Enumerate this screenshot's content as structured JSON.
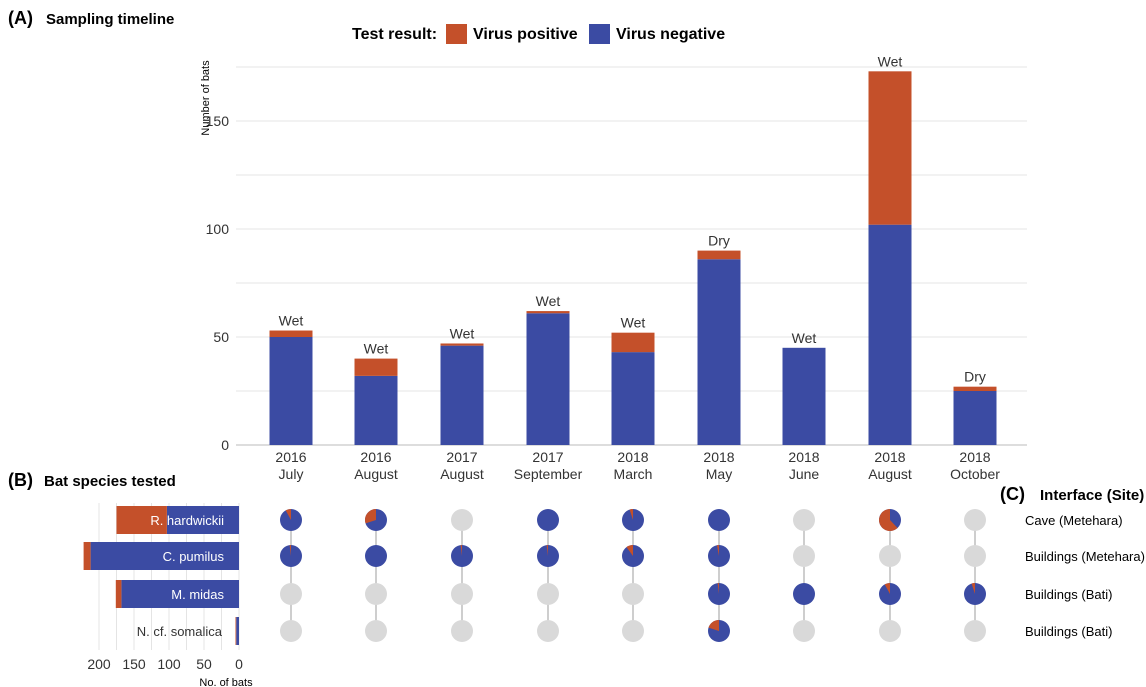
{
  "colors": {
    "positive": "#C4502A",
    "negative": "#3B4BA3",
    "absent": "#D9D9D9",
    "grid": "#E4E4E4",
    "connector": "#BDBDBD"
  },
  "panel_a": {
    "letter": "(A)",
    "title": "Sampling timeline"
  },
  "panel_b": {
    "letter": "(B)",
    "title": "Bat species tested"
  },
  "panel_c": {
    "letter": "(C)",
    "title": "Interface (Site)"
  },
  "legend": {
    "title": "Test result:",
    "positive_label": "Virus positive",
    "negative_label": "Virus negative"
  },
  "chart_data": [
    {
      "type": "bar",
      "stacked": true,
      "title": "Sampling timeline",
      "ylabel": "Number of bats",
      "ylim": [
        0,
        175
      ],
      "yticks": [
        0,
        50,
        100,
        150
      ],
      "grid": true,
      "legend": "top",
      "categories": [
        "2016 July",
        "2016 August",
        "2017 August",
        "2017 September",
        "2018 March",
        "2018 May",
        "2018 June",
        "2018 August",
        "2018 October"
      ],
      "category_lines": [
        [
          "2016",
          "July"
        ],
        [
          "2016",
          "August"
        ],
        [
          "2017",
          "August"
        ],
        [
          "2017",
          "September"
        ],
        [
          "2018",
          "March"
        ],
        [
          "2018",
          "May"
        ],
        [
          "2018",
          "June"
        ],
        [
          "2018",
          "August"
        ],
        [
          "2018",
          "October"
        ]
      ],
      "season": [
        "Wet",
        "Wet",
        "Wet",
        "Wet",
        "Wet",
        "Dry",
        "Wet",
        "Wet",
        "Dry"
      ],
      "series": [
        {
          "name": "Virus negative",
          "values": [
            50,
            32,
            46,
            61,
            43,
            86,
            45,
            102,
            25
          ]
        },
        {
          "name": "Virus positive",
          "values": [
            3,
            8,
            1,
            1,
            9,
            4,
            0,
            71,
            2
          ]
        }
      ]
    },
    {
      "type": "bar",
      "orientation": "horizontal",
      "stacked": true,
      "title": "Bat species tested",
      "xlabel": "No. of bats",
      "xlim": [
        0,
        225
      ],
      "xticks": [
        0,
        50,
        100,
        150,
        200
      ],
      "reversed_axis": true,
      "categories": [
        "R. hardwickii",
        "C. pumilus",
        "M. midas",
        "N. cf. somalica"
      ],
      "series": [
        {
          "name": "Virus negative",
          "values": [
            103,
            212,
            168,
            4
          ]
        },
        {
          "name": "Virus positive",
          "values": [
            72,
            10,
            8,
            1
          ]
        }
      ]
    },
    {
      "type": "scatter",
      "encoding": "pie markers: fraction of virus-positive bats per sampling event and site; grey = not sampled",
      "title": "Interface (Site)",
      "rows": [
        "Cave (Metehara)",
        "Buildings (Metehara)",
        "Buildings (Bati)",
        "Buildings (Bati)"
      ],
      "columns": [
        "2016 July",
        "2016 August",
        "2017 August",
        "2017 September",
        "2018 March",
        "2018 May",
        "2018 June",
        "2018 August",
        "2018 October"
      ],
      "positive_fraction": [
        [
          0.08,
          0.3,
          null,
          0.0,
          0.05,
          0.0,
          null,
          0.62,
          null
        ],
        [
          0.02,
          0.0,
          0.02,
          0.02,
          0.1,
          0.03,
          null,
          null,
          null
        ],
        [
          null,
          null,
          null,
          null,
          null,
          0.02,
          0.0,
          0.08,
          0.05
        ],
        [
          null,
          null,
          null,
          null,
          null,
          0.2,
          null,
          null,
          null
        ]
      ]
    }
  ]
}
